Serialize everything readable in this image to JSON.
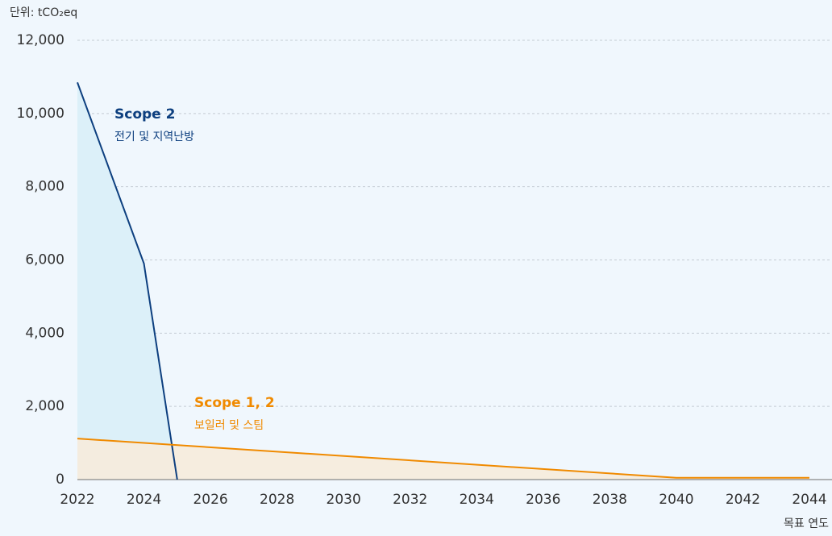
{
  "chart_data": {
    "type": "area",
    "y_unit_label": "단위: tCO₂eq",
    "x_label": "목표 연도",
    "xlim": [
      2022,
      2044
    ],
    "xticks": [
      2022,
      2024,
      2026,
      2028,
      2030,
      2032,
      2034,
      2036,
      2038,
      2040,
      2042,
      2044
    ],
    "ylim": [
      0,
      12000
    ],
    "yticks": [
      0,
      {
        "value": 2000,
        "label": "2,000"
      },
      {
        "value": 4000,
        "label": "4,000"
      },
      {
        "value": 6000,
        "label": "6,000"
      },
      {
        "value": 8000,
        "label": "8,000"
      },
      {
        "value": 10000,
        "label": "10,000"
      },
      {
        "value": 12000,
        "label": "12,000"
      }
    ],
    "grid": true,
    "series": [
      {
        "name": "Scope 2",
        "description": "전기 및 지역난방",
        "color": "#0d3f7f",
        "fill": "#dcf0f9",
        "x": [
          2022,
          2024,
          2025
        ],
        "values": [
          10850,
          5900,
          0
        ]
      },
      {
        "name": "Scope 1, 2",
        "description": "보일러 및 스팀",
        "color": "#f08a00",
        "fill": "#f6ebdc",
        "x": [
          2022,
          2040,
          2044
        ],
        "values": [
          1120,
          50,
          50
        ]
      }
    ]
  }
}
